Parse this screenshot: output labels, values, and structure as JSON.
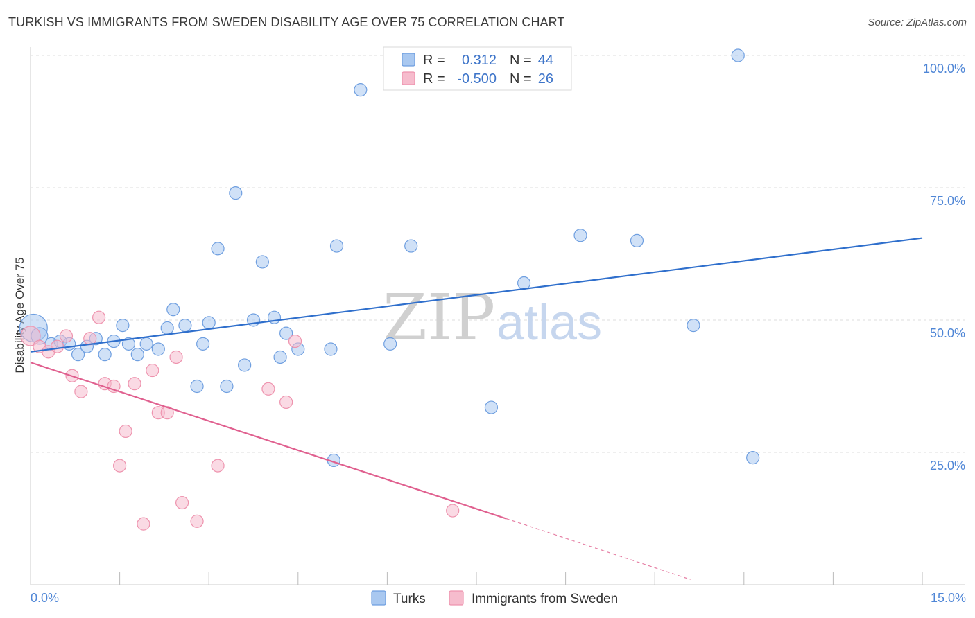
{
  "title": "TURKISH VS IMMIGRANTS FROM SWEDEN DISABILITY AGE OVER 75 CORRELATION CHART",
  "source": "Source: ZipAtlas.com",
  "watermark": {
    "zip": "ZIP",
    "atlas": "atlas"
  },
  "colors": {
    "turks_fill": "#a9c8f0",
    "turks_stroke": "#6f9fe0",
    "turks_line": "#2f6fcc",
    "sweden_fill": "#f6bccd",
    "sweden_stroke": "#ee93ae",
    "sweden_line": "#e0608f",
    "tick_label": "#4f86d6",
    "grid": "#dddddd"
  },
  "legend": {
    "rows": [
      {
        "r_label": "R =",
        "r_value": "0.312",
        "n_label": "N =",
        "n_value": "44",
        "series": "turks"
      },
      {
        "r_label": "R =",
        "r_value": "-0.500",
        "n_label": "N =",
        "n_value": "26",
        "series": "sweden"
      }
    ]
  },
  "bottom_legend": [
    {
      "label": "Turks",
      "series": "turks"
    },
    {
      "label": "Immigrants from Sweden",
      "series": "sweden"
    }
  ],
  "chart_data": {
    "type": "scatter",
    "title": "TURKISH VS IMMIGRANTS FROM SWEDEN DISABILITY AGE OVER 75 CORRELATION CHART",
    "xlabel": "",
    "ylabel": "Disability Age Over 75",
    "xlim": [
      0,
      15
    ],
    "ylim": [
      0,
      100
    ],
    "x_tick_labels": [
      {
        "value": 0,
        "label": "0.0%"
      },
      {
        "value": 15,
        "label": "15.0%"
      }
    ],
    "y_tick_labels": [
      {
        "value": 100,
        "label": "100.0%"
      },
      {
        "value": 75,
        "label": "75.0%"
      },
      {
        "value": 50,
        "label": "50.0%"
      },
      {
        "value": 25,
        "label": "25.0%"
      }
    ],
    "series": [
      {
        "name": "Turks",
        "key": "turks",
        "points": [
          [
            0.05,
            48.5,
            20
          ],
          [
            0.15,
            47.0,
            12
          ],
          [
            0.35,
            45.5,
            9
          ],
          [
            0.5,
            46.0,
            9
          ],
          [
            0.65,
            45.5,
            9
          ],
          [
            0.8,
            43.5,
            9
          ],
          [
            0.95,
            45.0,
            9
          ],
          [
            1.1,
            46.5,
            9
          ],
          [
            1.25,
            43.5,
            9
          ],
          [
            1.4,
            46.0,
            9
          ],
          [
            1.55,
            49.0,
            9
          ],
          [
            1.65,
            45.5,
            9
          ],
          [
            1.8,
            43.5,
            9
          ],
          [
            1.95,
            45.5,
            9
          ],
          [
            2.15,
            44.5,
            9
          ],
          [
            2.3,
            48.5,
            9
          ],
          [
            2.4,
            52.0,
            9
          ],
          [
            2.6,
            49.0,
            9
          ],
          [
            2.8,
            37.5,
            9
          ],
          [
            2.9,
            45.5,
            9
          ],
          [
            3.0,
            49.5,
            9
          ],
          [
            3.15,
            63.5,
            9
          ],
          [
            3.3,
            37.5,
            9
          ],
          [
            3.45,
            74.0,
            9
          ],
          [
            3.6,
            41.5,
            9
          ],
          [
            3.75,
            50.0,
            9
          ],
          [
            3.9,
            61.0,
            9
          ],
          [
            4.1,
            50.5,
            9
          ],
          [
            4.2,
            43.0,
            9
          ],
          [
            4.3,
            47.5,
            9
          ],
          [
            4.5,
            44.5,
            9
          ],
          [
            5.05,
            44.5,
            9
          ],
          [
            5.15,
            64.0,
            9
          ],
          [
            5.1,
            23.5,
            9
          ],
          [
            5.55,
            93.5,
            9
          ],
          [
            6.05,
            45.5,
            9
          ],
          [
            6.4,
            64.0,
            9
          ],
          [
            7.75,
            33.5,
            9
          ],
          [
            8.3,
            57.0,
            9
          ],
          [
            9.25,
            66.0,
            9
          ],
          [
            10.2,
            65.0,
            9
          ],
          [
            11.15,
            49.0,
            9
          ],
          [
            11.9,
            100.0,
            9
          ],
          [
            12.15,
            24.0,
            9
          ]
        ],
        "trend": {
          "x": [
            0,
            15
          ],
          "y": [
            44.0,
            65.5
          ]
        }
      },
      {
        "name": "Immigrants from Sweden",
        "key": "sweden",
        "points": [
          [
            0.0,
            47.0,
            14
          ],
          [
            0.15,
            45.0,
            9
          ],
          [
            0.3,
            44.0,
            9
          ],
          [
            0.45,
            45.0,
            9
          ],
          [
            0.6,
            47.0,
            9
          ],
          [
            0.7,
            39.5,
            9
          ],
          [
            0.85,
            36.5,
            9
          ],
          [
            1.0,
            46.5,
            9
          ],
          [
            1.15,
            50.5,
            9
          ],
          [
            1.25,
            38.0,
            9
          ],
          [
            1.4,
            37.5,
            9
          ],
          [
            1.5,
            22.5,
            9
          ],
          [
            1.6,
            29.0,
            9
          ],
          [
            1.75,
            38.0,
            9
          ],
          [
            1.9,
            11.5,
            9
          ],
          [
            2.05,
            40.5,
            9
          ],
          [
            2.15,
            32.5,
            9
          ],
          [
            2.3,
            32.5,
            9
          ],
          [
            2.45,
            43.0,
            9
          ],
          [
            2.55,
            15.5,
            9
          ],
          [
            2.8,
            12.0,
            9
          ],
          [
            3.15,
            22.5,
            9
          ],
          [
            4.0,
            37.0,
            9
          ],
          [
            4.3,
            34.5,
            9
          ],
          [
            4.45,
            46.0,
            9
          ],
          [
            7.1,
            14.0,
            9
          ]
        ],
        "trend": {
          "x": [
            0,
            8.0
          ],
          "y": [
            42.0,
            12.5
          ]
        },
        "trend_dashed": {
          "x": [
            8.0,
            11.1
          ],
          "y": [
            12.5,
            1.0
          ]
        }
      }
    ]
  }
}
